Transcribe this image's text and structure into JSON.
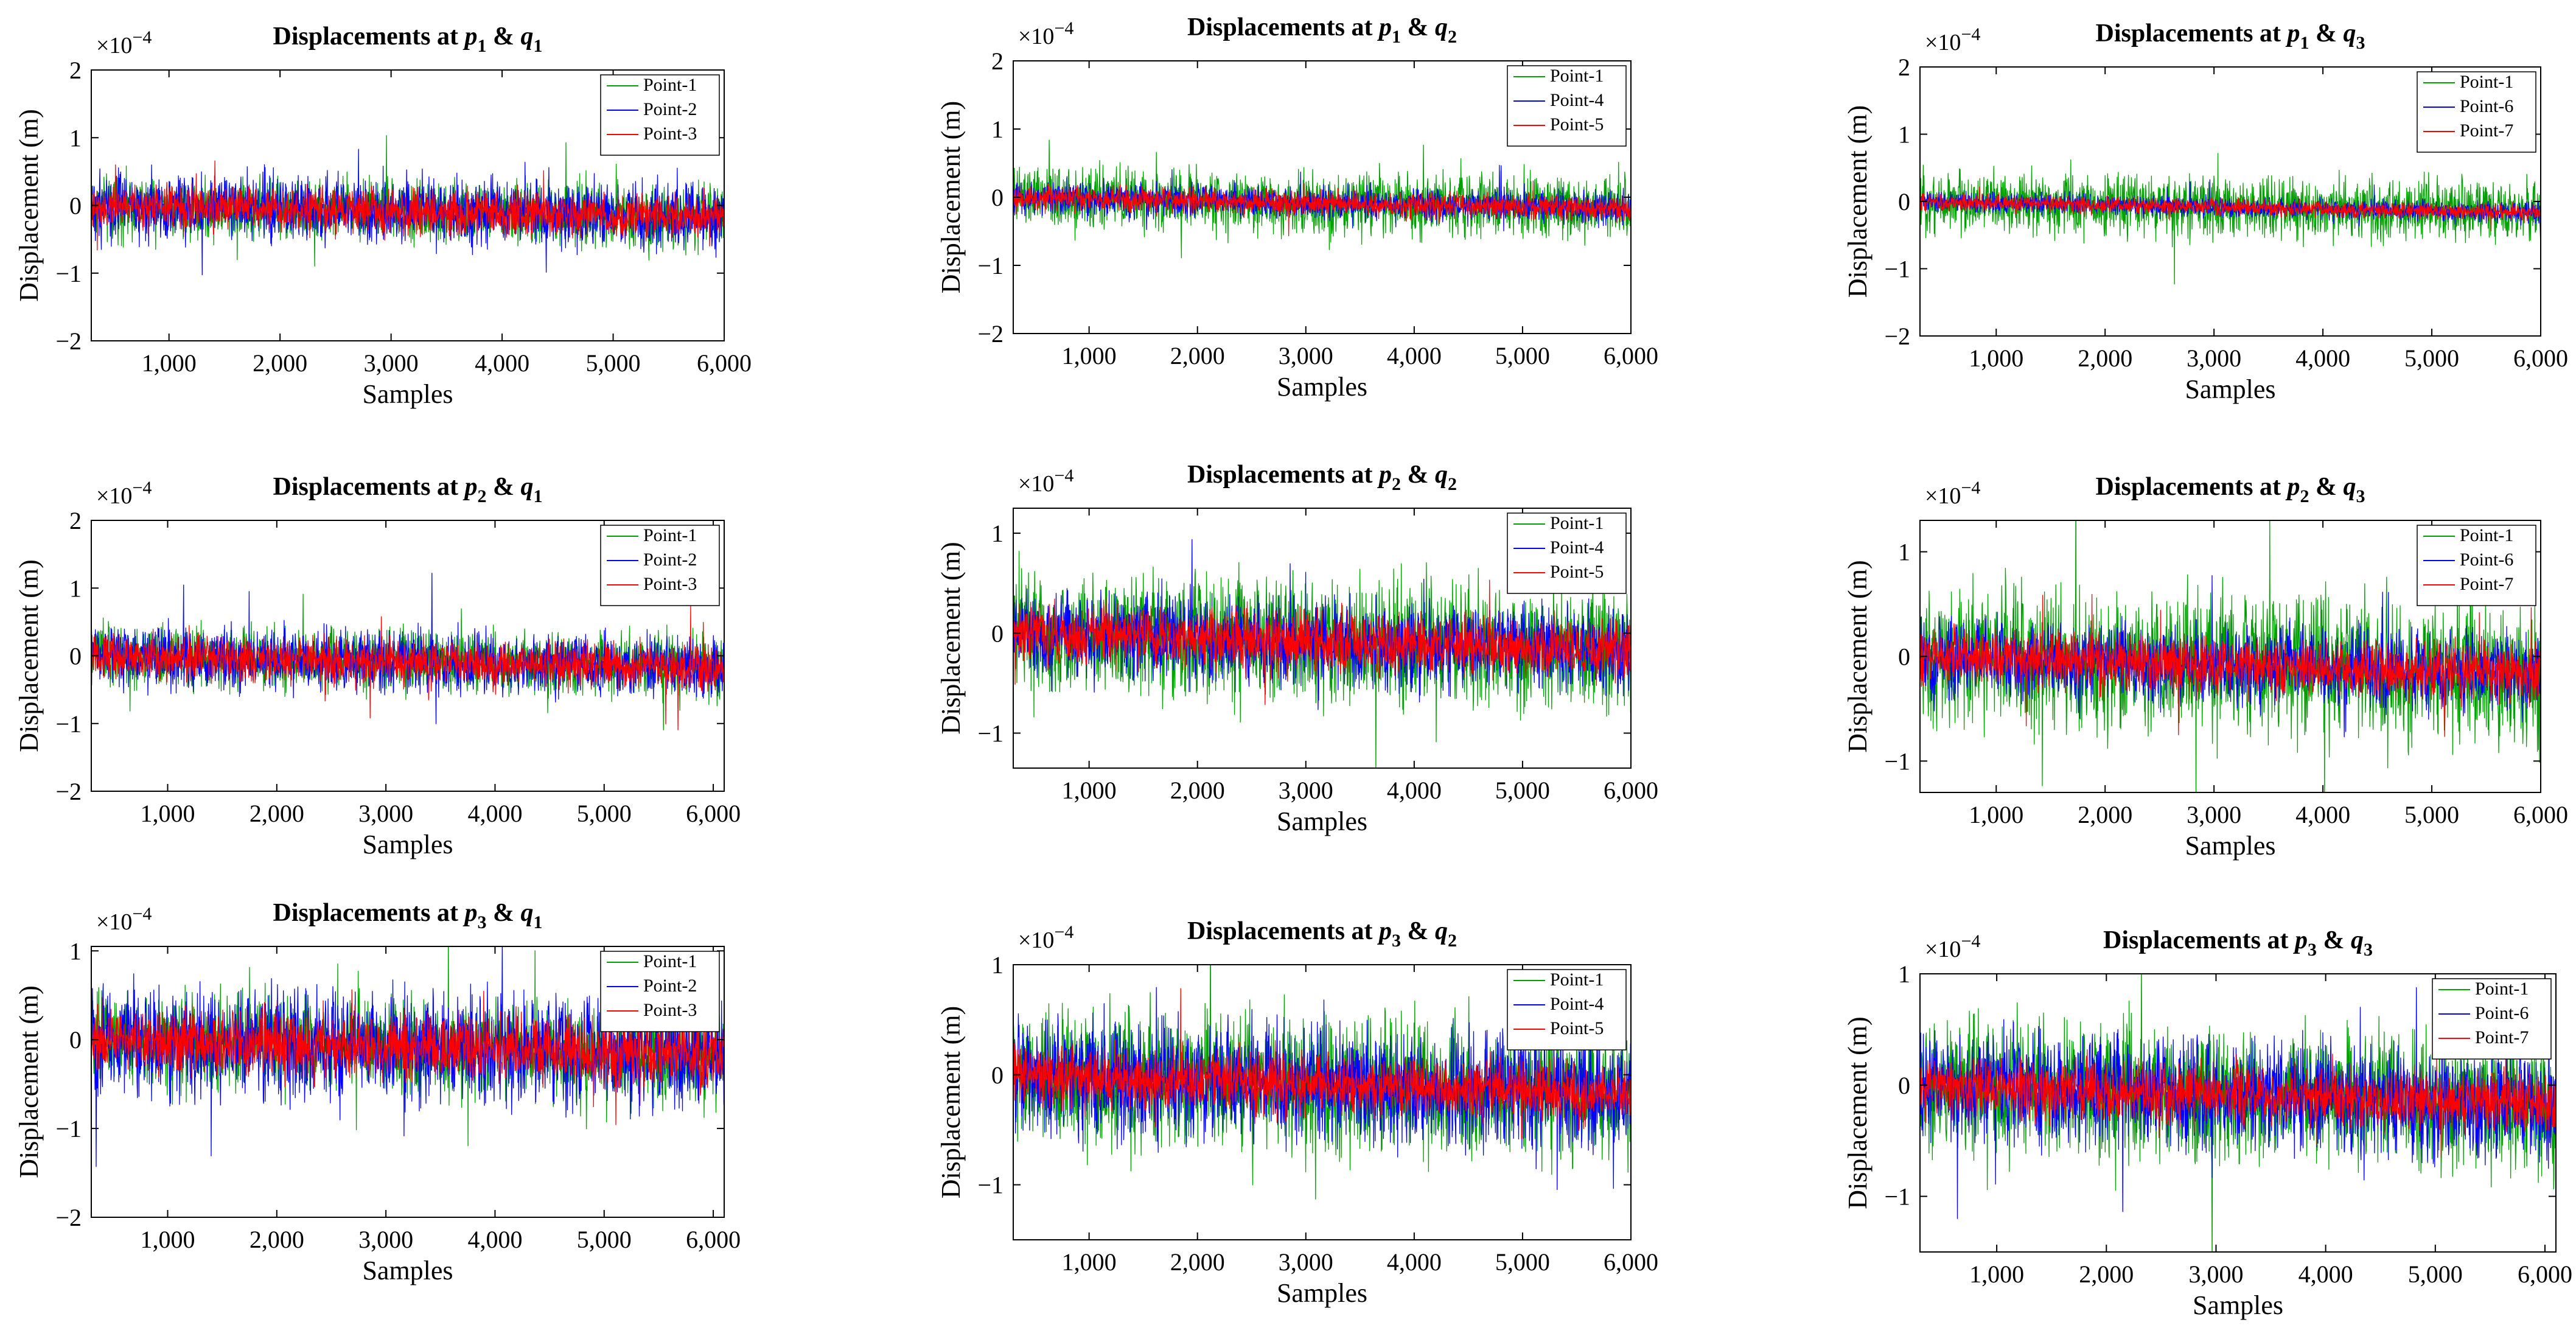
{
  "figure_title": "Displacements at p & q",
  "colors": {
    "Point-1": "#00A000",
    "Point-2": "#0000FF",
    "Point-4": "#0000FF",
    "Point-6": "#0000FF",
    "Point-3": "#FF0000",
    "Point-5": "#FF0000",
    "Point-7": "#FF0000"
  },
  "chart_data": [
    {
      "id": "p1q1",
      "type": "line",
      "title": "Displacements at",
      "p": "p",
      "p_sub": "1",
      "amp": "&",
      "q": "q",
      "q_sub": "1",
      "xlabel": "Samples",
      "ylabel": "Displacement (m)",
      "exponent": "×10",
      "exponent_power": "−4",
      "xlim": [
        300,
        6000
      ],
      "ylim": [
        -2,
        2
      ],
      "xticks": [
        1000,
        2000,
        3000,
        4000,
        5000,
        6000
      ],
      "xtick_labels": [
        "1,000",
        "2,000",
        "3,000",
        "4,000",
        "5,000",
        "6,000"
      ],
      "yticks": [
        -2,
        -1,
        0,
        1,
        2
      ],
      "ytick_labels": [
        "−2",
        "−1",
        "0",
        "1",
        "2"
      ],
      "series": [
        {
          "name": "Point-1",
          "color": "#00A000",
          "noise_amplitude": 0.3,
          "drift_per_sample": 3.33e-05
        },
        {
          "name": "Point-2",
          "color": "#0000FF",
          "noise_amplitude": 0.32,
          "drift_per_sample": 3.33e-05
        },
        {
          "name": "Point-3",
          "color": "#FF0000",
          "noise_amplitude": 0.22,
          "drift_per_sample": 3.33e-05
        }
      ]
    },
    {
      "id": "p1q2",
      "type": "line",
      "title": "Displacements at",
      "p": "p",
      "p_sub": "1",
      "amp": "&",
      "q": "q",
      "q_sub": "2",
      "xlabel": "Samples",
      "ylabel": "Displacement (m)",
      "exponent": "×10",
      "exponent_power": "−4",
      "xlim": [
        300,
        6000
      ],
      "ylim": [
        -2,
        2
      ],
      "xticks": [
        1000,
        2000,
        3000,
        4000,
        5000,
        6000
      ],
      "xtick_labels": [
        "1,000",
        "2,000",
        "3,000",
        "4,000",
        "5,000",
        "6,000"
      ],
      "yticks": [
        -2,
        -1,
        0,
        1,
        2
      ],
      "ytick_labels": [
        "−2",
        "−1",
        "0",
        "1",
        "2"
      ],
      "series": [
        {
          "name": "Point-1",
          "color": "#00A000",
          "noise_amplitude": 0.3,
          "drift_per_sample": 3.33e-05
        },
        {
          "name": "Point-4",
          "color": "#0000FF",
          "noise_amplitude": 0.16,
          "drift_per_sample": 3.33e-05
        },
        {
          "name": "Point-5",
          "color": "#FF0000",
          "noise_amplitude": 0.12,
          "drift_per_sample": 3.33e-05
        }
      ]
    },
    {
      "id": "p1q3",
      "type": "line",
      "title": "Displacements at",
      "p": "p",
      "p_sub": "1",
      "amp": "&",
      "q": "q",
      "q_sub": "3",
      "xlabel": "Samples",
      "ylabel": "Displacement (m)",
      "exponent": "×10",
      "exponent_power": "−4",
      "xlim": [
        300,
        6000
      ],
      "ylim": [
        -2,
        2
      ],
      "xticks": [
        1000,
        2000,
        3000,
        4000,
        5000,
        6000
      ],
      "xtick_labels": [
        "1,000",
        "2,000",
        "3,000",
        "4,000",
        "5,000",
        "6,000"
      ],
      "yticks": [
        -2,
        -1,
        0,
        1,
        2
      ],
      "ytick_labels": [
        "−2",
        "−1",
        "0",
        "1",
        "2"
      ],
      "series": [
        {
          "name": "Point-1",
          "color": "#00A000",
          "noise_amplitude": 0.3,
          "drift_per_sample": 3.33e-05
        },
        {
          "name": "Point-6",
          "color": "#0000FF",
          "noise_amplitude": 0.1,
          "drift_per_sample": 3.33e-05
        },
        {
          "name": "Point-7",
          "color": "#FF0000",
          "noise_amplitude": 0.08,
          "drift_per_sample": 3.33e-05
        }
      ]
    },
    {
      "id": "p2q1",
      "type": "line",
      "title": "Displacements at",
      "p": "p",
      "p_sub": "2",
      "amp": "&",
      "q": "q",
      "q_sub": "1",
      "xlabel": "Samples",
      "ylabel": "Displacement (m)",
      "exponent": "×10",
      "exponent_power": "−4",
      "xlim": [
        300,
        6100
      ],
      "ylim": [
        -2,
        2
      ],
      "xticks": [
        1000,
        2000,
        3000,
        4000,
        5000,
        6000
      ],
      "xtick_labels": [
        "1,000",
        "2,000",
        "3,000",
        "4,000",
        "5,000",
        "6,000"
      ],
      "yticks": [
        -2,
        -1,
        0,
        1,
        2
      ],
      "ytick_labels": [
        "−2",
        "−1",
        "0",
        "1",
        "2"
      ],
      "series": [
        {
          "name": "Point-1",
          "color": "#00A000",
          "noise_amplitude": 0.3,
          "drift_per_sample": 3.33e-05
        },
        {
          "name": "Point-2",
          "color": "#0000FF",
          "noise_amplitude": 0.3,
          "drift_per_sample": 3.33e-05
        },
        {
          "name": "Point-3",
          "color": "#FF0000",
          "noise_amplitude": 0.22,
          "drift_per_sample": 3.33e-05
        }
      ]
    },
    {
      "id": "p2q2",
      "type": "line",
      "title": "Displacements at",
      "p": "p",
      "p_sub": "2",
      "amp": "&",
      "q": "q",
      "q_sub": "2",
      "xlabel": "Samples",
      "ylabel": "Displacement (m)",
      "exponent": "×10",
      "exponent_power": "−4",
      "xlim": [
        300,
        6000
      ],
      "ylim": [
        -1.35,
        1.25
      ],
      "xticks": [
        1000,
        2000,
        3000,
        4000,
        5000,
        6000
      ],
      "xtick_labels": [
        "1,000",
        "2,000",
        "3,000",
        "4,000",
        "5,000",
        "6,000"
      ],
      "yticks": [
        -1,
        0,
        1
      ],
      "ytick_labels": [
        "−1",
        "0",
        "1"
      ],
      "series": [
        {
          "name": "Point-1",
          "color": "#00A000",
          "noise_amplitude": 0.4,
          "drift_per_sample": 3.33e-05
        },
        {
          "name": "Point-4",
          "color": "#0000FF",
          "noise_amplitude": 0.28,
          "drift_per_sample": 3.33e-05
        },
        {
          "name": "Point-5",
          "color": "#FF0000",
          "noise_amplitude": 0.2,
          "drift_per_sample": 3.33e-05
        }
      ]
    },
    {
      "id": "p2q3",
      "type": "line",
      "title": "Displacements at",
      "p": "p",
      "p_sub": "2",
      "amp": "&",
      "q": "q",
      "q_sub": "3",
      "xlabel": "Samples",
      "ylabel": "Displacement (m)",
      "exponent": "×10",
      "exponent_power": "−4",
      "xlim": [
        300,
        6000
      ],
      "ylim": [
        -1.3,
        1.3
      ],
      "xticks": [
        1000,
        2000,
        3000,
        4000,
        5000,
        6000
      ],
      "xtick_labels": [
        "1,000",
        "2,000",
        "3,000",
        "4,000",
        "5,000",
        "6,000"
      ],
      "yticks": [
        -1,
        0,
        1
      ],
      "ytick_labels": [
        "−1",
        "0",
        "1"
      ],
      "series": [
        {
          "name": "Point-1",
          "color": "#00A000",
          "noise_amplitude": 0.45,
          "drift_per_sample": 3.33e-05
        },
        {
          "name": "Point-6",
          "color": "#0000FF",
          "noise_amplitude": 0.25,
          "drift_per_sample": 3.33e-05
        },
        {
          "name": "Point-7",
          "color": "#FF0000",
          "noise_amplitude": 0.18,
          "drift_per_sample": 3.33e-05
        }
      ]
    },
    {
      "id": "p3q1",
      "type": "line",
      "title": "Displacements at",
      "p": "p",
      "p_sub": "3",
      "amp": "&",
      "q": "q",
      "q_sub": "1",
      "xlabel": "Samples",
      "ylabel": "Displacement (m)",
      "exponent": "×10",
      "exponent_power": "−4",
      "xlim": [
        300,
        6100
      ],
      "ylim": [
        -2,
        1.05
      ],
      "xticks": [
        1000,
        2000,
        3000,
        4000,
        5000,
        6000
      ],
      "xtick_labels": [
        "1,000",
        "2,000",
        "3,000",
        "4,000",
        "5,000",
        "6,000"
      ],
      "yticks": [
        -2,
        -1,
        0,
        1
      ],
      "ytick_labels": [
        "−2",
        "−1",
        "0",
        "1"
      ],
      "series": [
        {
          "name": "Point-1",
          "color": "#00A000",
          "noise_amplitude": 0.35,
          "drift_per_sample": 3.33e-05
        },
        {
          "name": "Point-2",
          "color": "#0000FF",
          "noise_amplitude": 0.4,
          "drift_per_sample": 3.33e-05
        },
        {
          "name": "Point-3",
          "color": "#FF0000",
          "noise_amplitude": 0.25,
          "drift_per_sample": 3.33e-05
        }
      ]
    },
    {
      "id": "p3q2",
      "type": "line",
      "title": "Displacements at",
      "p": "p",
      "p_sub": "3",
      "amp": "&",
      "q": "q",
      "q_sub": "2",
      "xlabel": "Samples",
      "ylabel": "Displacement (m)",
      "exponent": "×10",
      "exponent_power": "−4",
      "xlim": [
        300,
        6000
      ],
      "ylim": [
        -1.5,
        1
      ],
      "xticks": [
        1000,
        2000,
        3000,
        4000,
        5000,
        6000
      ],
      "xtick_labels": [
        "1,000",
        "2,000",
        "3,000",
        "4,000",
        "5,000",
        "6,000"
      ],
      "yticks": [
        -1,
        0,
        1
      ],
      "ytick_labels": [
        "−1",
        "0",
        "1"
      ],
      "series": [
        {
          "name": "Point-1",
          "color": "#00A000",
          "noise_amplitude": 0.4,
          "drift_per_sample": 3.33e-05
        },
        {
          "name": "Point-4",
          "color": "#0000FF",
          "noise_amplitude": 0.35,
          "drift_per_sample": 3.33e-05
        },
        {
          "name": "Point-5",
          "color": "#FF0000",
          "noise_amplitude": 0.18,
          "drift_per_sample": 3.33e-05
        }
      ]
    },
    {
      "id": "p3q3",
      "type": "line",
      "title": "Displacements at",
      "p": "p",
      "p_sub": "3",
      "amp": "&",
      "q": "q",
      "q_sub": "3",
      "xlabel": "Samples",
      "ylabel": "Displacement (m)",
      "exponent": "×10",
      "exponent_power": "−4",
      "xlim": [
        300,
        6100
      ],
      "ylim": [
        -1.5,
        1
      ],
      "xticks": [
        1000,
        2000,
        3000,
        4000,
        5000,
        6000
      ],
      "xtick_labels": [
        "1,000",
        "2,000",
        "3,000",
        "4,000",
        "5,000",
        "6,000"
      ],
      "yticks": [
        -1,
        0,
        1
      ],
      "ytick_labels": [
        "−1",
        "0",
        "1"
      ],
      "series": [
        {
          "name": "Point-1",
          "color": "#00A000",
          "noise_amplitude": 0.4,
          "drift_per_sample": 3.33e-05
        },
        {
          "name": "Point-6",
          "color": "#0000FF",
          "noise_amplitude": 0.33,
          "drift_per_sample": 3.33e-05
        },
        {
          "name": "Point-7",
          "color": "#FF0000",
          "noise_amplitude": 0.18,
          "drift_per_sample": 3.33e-05
        }
      ]
    }
  ]
}
